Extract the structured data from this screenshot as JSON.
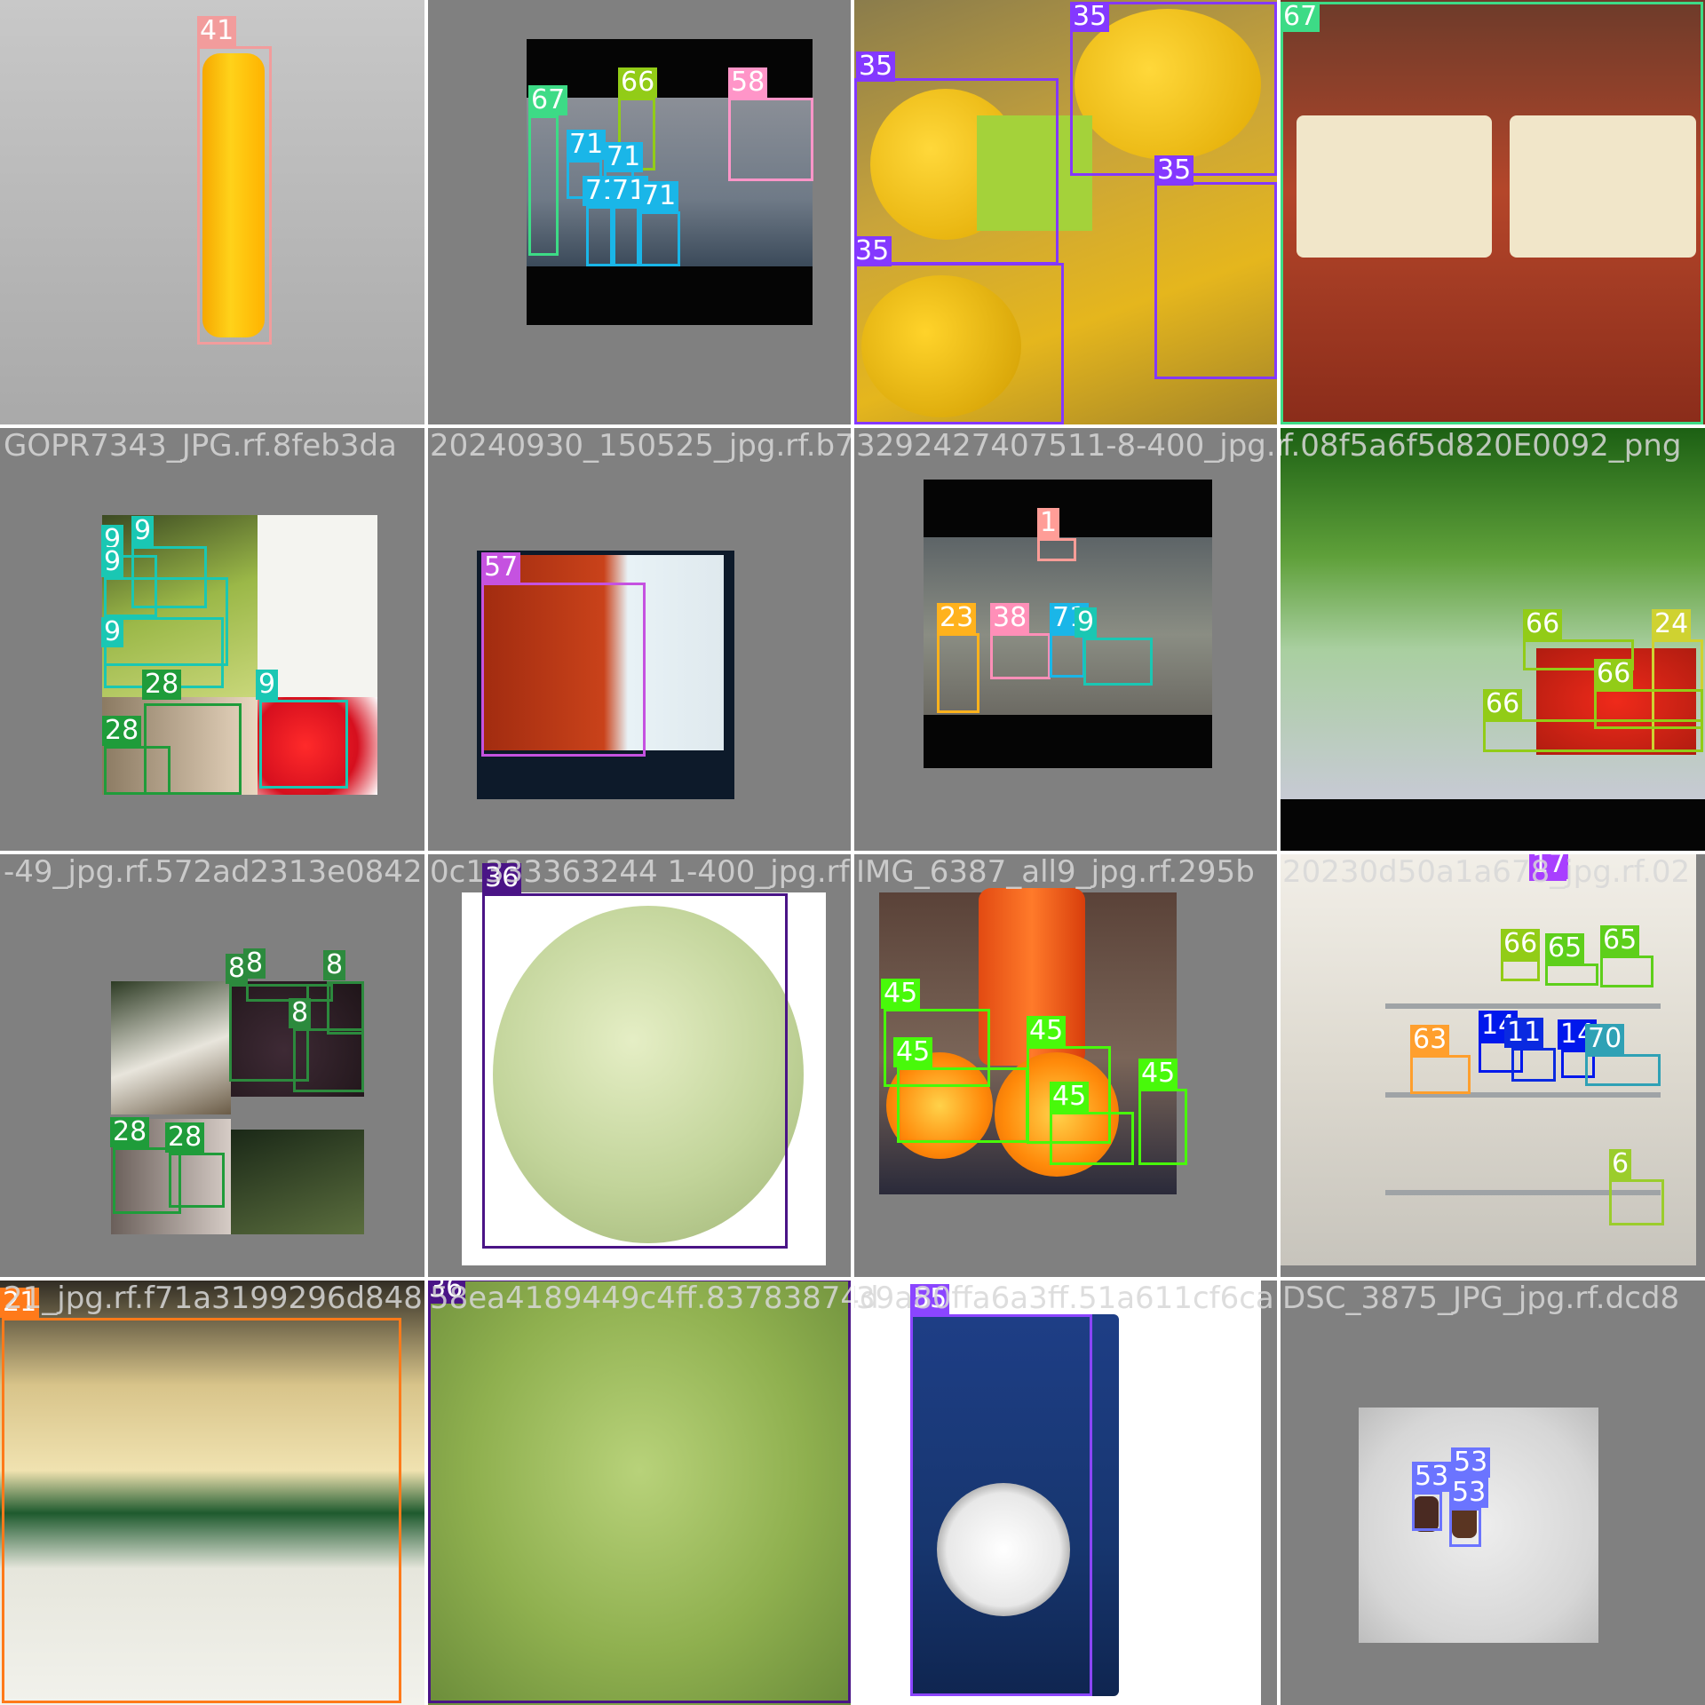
{
  "image": {
    "description_hidden": ""
  },
  "captions": [
    "GOPR7343_JPG.rf.8feb3da",
    "20240930_150525_jpg.rf.b7",
    "3292427407511-8-400_jpg.r",
    "f.08f5a6f5d820E0092_png",
    "-49_jpg.rf.572ad2313e0842",
    "0c1333363244 1-400_jpg.rf",
    "IMG_6387_all9_jpg.rf.295b",
    "20230d50a1a678_jpg.rf.02",
    "21_jpg.rf.f71a3199296d848",
    "58ea4189449c4ff.83783874d",
    "39a80ffa6a3ff.51a611cf6ca",
    "DSC_3875_JPG_jpg.rf.dcd8"
  ],
  "labels": {
    "t0": [
      "41"
    ],
    "t1": [
      "67",
      "66",
      "58",
      "71",
      "71",
      "71",
      "71",
      "71"
    ],
    "t2": [
      "35",
      "35",
      "35",
      "35"
    ],
    "t3": [
      "67"
    ],
    "t4": [
      "9",
      "9",
      "9",
      "9",
      "28",
      "28",
      "9"
    ],
    "t5": [
      "57"
    ],
    "t6": [
      "1",
      "23",
      "38",
      "71",
      "9"
    ],
    "t7": [
      "66",
      "24",
      "66",
      "66"
    ],
    "t8": [
      "8",
      "8",
      "8",
      "8",
      "28",
      "28"
    ],
    "t9": [
      "36"
    ],
    "t10": [
      "45",
      "45",
      "45",
      "45",
      "45"
    ],
    "t11": [
      "17",
      "66",
      "65",
      "65",
      "63",
      "14",
      "11",
      "14",
      "70",
      "6"
    ],
    "t12": [
      "21"
    ],
    "t13": [
      "36"
    ],
    "t14": [
      "55"
    ],
    "t15": [
      "53",
      "53",
      "53"
    ]
  },
  "palette": {
    "c41": "#f29c9c",
    "c67": "#3ddb86",
    "c66": "#92cc17",
    "c58": "#ff95c8",
    "c71": "#1ab6e8",
    "c35": "#8438ff",
    "c9": "#1ac7b3",
    "c28": "#1f9c3a",
    "c57": "#c552e0",
    "c1": "#ff9d97",
    "c23": "#ffb21d",
    "c38": "#ff8fb8",
    "c24": "#cfd231",
    "c8": "#2c8a3d",
    "c36": "#4a1486",
    "c45": "#48f90a",
    "c17": "#a83fff",
    "c65": "#5ecf1b",
    "c63": "#ff9f2d",
    "c14": "#0018ec",
    "c11": "#0a2ae0",
    "c70": "#2fa1b5",
    "c6": "#9bcd2c",
    "c21": "#ff7a1a",
    "c55": "#8b45ff",
    "c53": "#6b74ff"
  }
}
